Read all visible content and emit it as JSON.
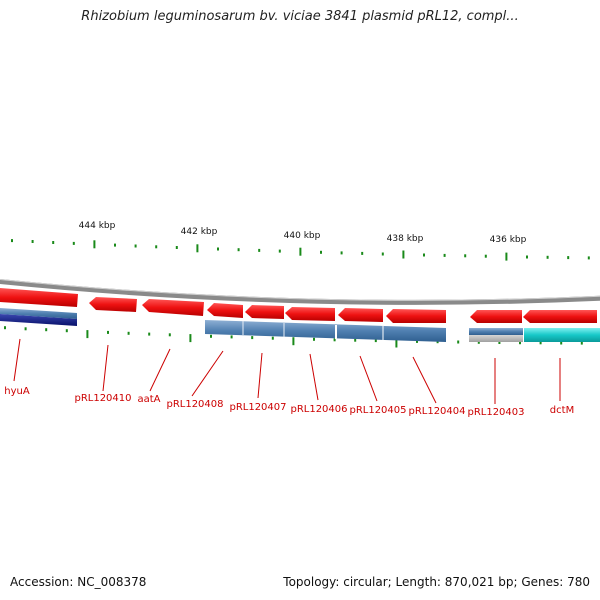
{
  "header": {
    "title": "Rhizobium leguminosarum bv. viciae 3841 plasmid pRL12, compl..."
  },
  "footer": {
    "accession": "Accession: NC_008378",
    "summary": "Topology: circular; Length: 870,021 bp; Genes: 780"
  },
  "colors": {
    "forward_gene": "#ee1111",
    "reverse_gene": "#d81111",
    "backbone": "#888888",
    "tick": "#1a8a1a",
    "label": "#cc0000",
    "blue_feature": "#4f7fb0",
    "navy_feature": "#101a80",
    "cyan_feature": "#16c8c8",
    "grey_feature": "#b4b4b4"
  },
  "axis": {
    "unit": "kbp",
    "ticks": [
      {
        "kbp": 444,
        "label": "444 kbp"
      },
      {
        "kbp": 442,
        "label": "442 kbp"
      },
      {
        "kbp": 440,
        "label": "440 kbp"
      },
      {
        "kbp": 438,
        "label": "438 kbp"
      },
      {
        "kbp": 436,
        "label": "436 kbp"
      }
    ]
  },
  "gene_labels": [
    "hyuA",
    "pRL120410",
    "aatA",
    "pRL120408",
    "pRL120407",
    "pRL120406",
    "pRL120405",
    "pRL120404",
    "pRL120403",
    "dctM"
  ]
}
